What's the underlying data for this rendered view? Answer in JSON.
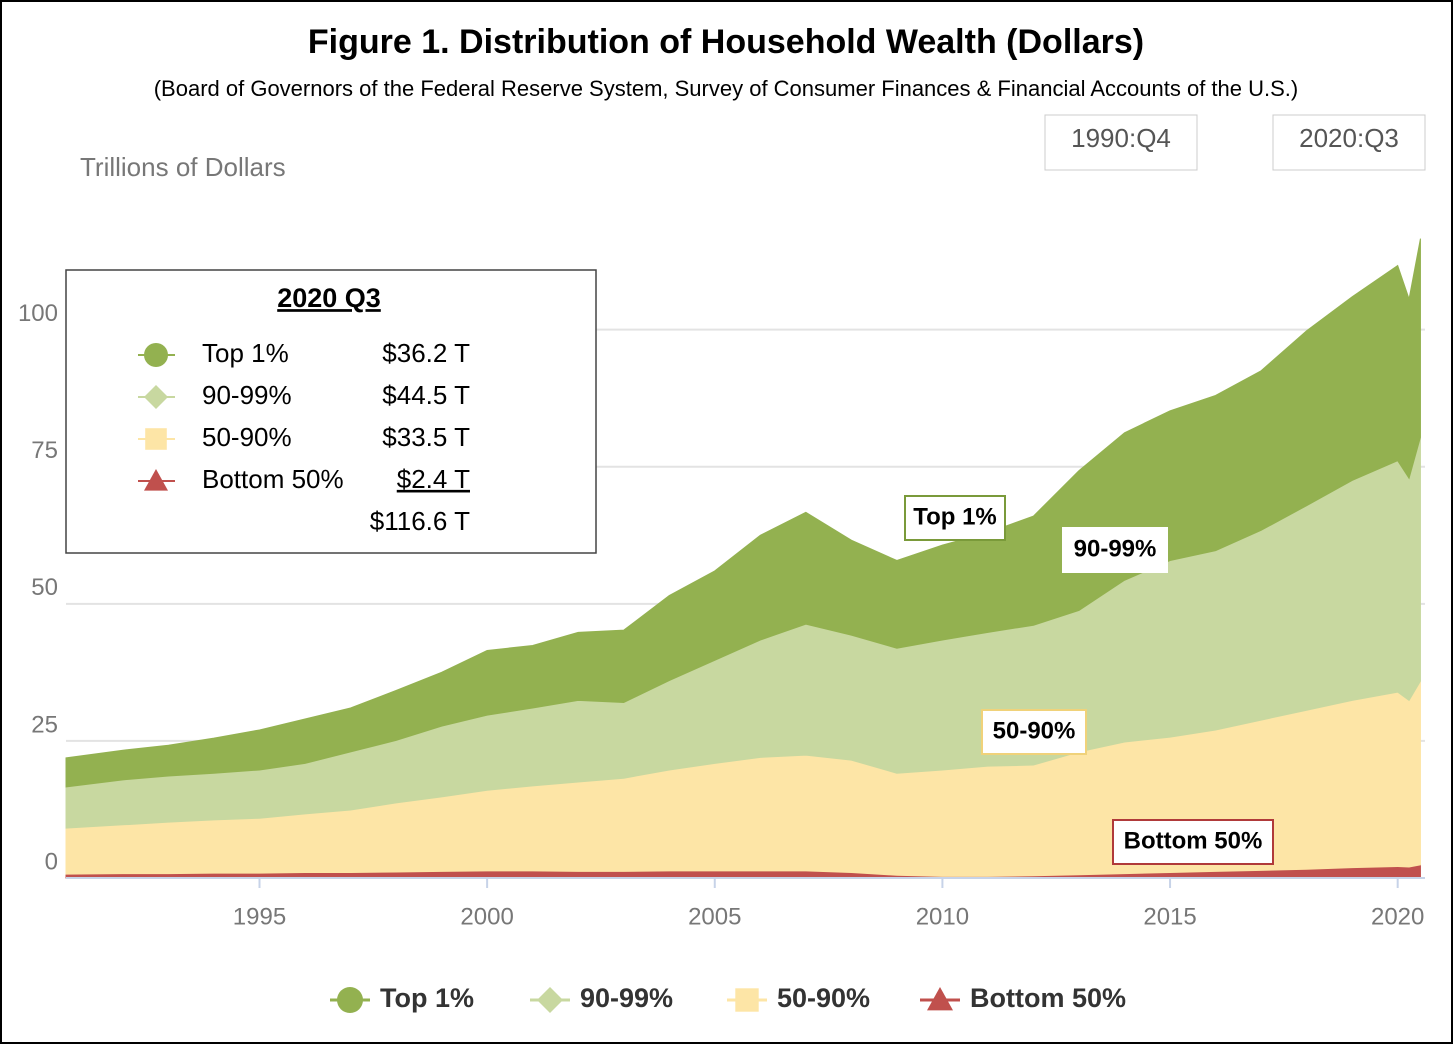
{
  "chart_data": {
    "type": "stacked_area",
    "title": "Figure 1. Distribution of Household Wealth (Dollars)",
    "subtitle": "(Board of Governors of the Federal Reserve System, Survey of Consumer Finances & Financial Accounts of the U.S.)",
    "y_label": "Trillions of Dollars",
    "range_selector": [
      "1990:Q4",
      "2020:Q3"
    ],
    "x": [
      1990.75,
      1992,
      1993,
      1994,
      1995,
      1996,
      1997,
      1998,
      1999,
      2000,
      2001,
      2002,
      2003,
      2004,
      2005,
      2006,
      2007,
      2008,
      2009,
      2010,
      2011,
      2012,
      2013,
      2014,
      2015,
      2016,
      2017,
      2018,
      2019,
      2020,
      2020.25,
      2020.5
    ],
    "xlim": [
      1990.75,
      2020.6
    ],
    "xticks": [
      1995,
      2000,
      2005,
      2010,
      2015,
      2020
    ],
    "ylim": [
      0,
      120
    ],
    "yticks": [
      0,
      25,
      50,
      75,
      100
    ],
    "grid": true,
    "legend": "bottom",
    "series": [
      {
        "name": "Top 1%",
        "color": "#93b150",
        "marker": "circle",
        "values": [
          5.3,
          5.4,
          5.6,
          6.4,
          7.3,
          8.1,
          8.0,
          9.1,
          9.8,
          11.8,
          11.4,
          12.4,
          13.2,
          15.5,
          16.3,
          19.1,
          20.4,
          17.3,
          16.0,
          17.3,
          18.2,
          19.9,
          25.5,
          26.9,
          27.3,
          28.3,
          29.1,
          31.9,
          33.5,
          35.6,
          32.7,
          36.2
        ]
      },
      {
        "name": "90-99%",
        "color": "#c8d8a0",
        "marker": "diamond",
        "values": [
          7.5,
          8.2,
          8.4,
          8.5,
          8.8,
          9.2,
          10.6,
          11.4,
          12.9,
          13.7,
          14.2,
          14.9,
          13.8,
          16.3,
          18.8,
          21.4,
          23.9,
          22.8,
          22.8,
          23.7,
          24.4,
          25.5,
          25.8,
          29.5,
          32.2,
          32.7,
          34.6,
          37.3,
          40.1,
          42.2,
          40.5,
          44.5
        ]
      },
      {
        "name": "50-90%",
        "color": "#fde5a6",
        "marker": "square",
        "values": [
          8.4,
          8.9,
          9.4,
          9.7,
          10.0,
          10.7,
          11.4,
          12.6,
          13.6,
          14.7,
          15.5,
          16.3,
          17.0,
          18.4,
          19.6,
          20.7,
          21.1,
          20.5,
          18.6,
          19.4,
          20.1,
          20.2,
          22.4,
          24.0,
          24.7,
          25.8,
          27.4,
          29.0,
          30.5,
          31.8,
          30.4,
          33.5
        ]
      },
      {
        "name": "Bottom 50%",
        "color": "#c0504d",
        "marker": "triangle",
        "values": [
          0.7,
          0.8,
          0.8,
          0.9,
          0.9,
          1.0,
          1.0,
          1.1,
          1.2,
          1.3,
          1.3,
          1.2,
          1.2,
          1.3,
          1.3,
          1.3,
          1.3,
          1.0,
          0.5,
          0.3,
          0.3,
          0.4,
          0.6,
          0.8,
          1.0,
          1.2,
          1.4,
          1.6,
          1.9,
          2.1,
          2.0,
          2.4
        ]
      }
    ],
    "inset": {
      "title": "2020 Q3",
      "value_labels": [
        "$36.2 T",
        "$44.5 T",
        "$33.5 T",
        "$2.4 T"
      ],
      "total_label": "$116.6 T"
    }
  }
}
